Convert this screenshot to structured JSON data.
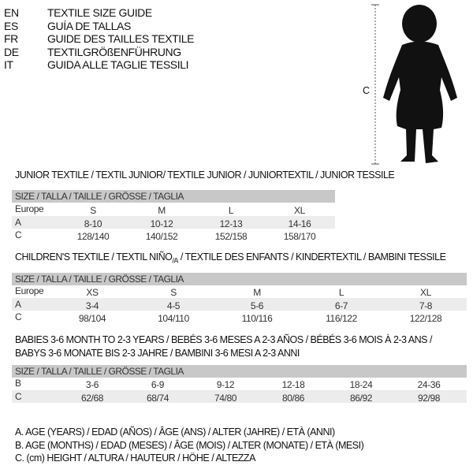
{
  "header": {
    "languages": [
      {
        "code": "EN",
        "title": "TEXTILE SIZE GUIDE"
      },
      {
        "code": "ES",
        "title": "GUÍA DE TALLAS"
      },
      {
        "code": "FR",
        "title": "GUIDE DES TAILLES TEXTILE"
      },
      {
        "code": "DE",
        "title": "TEXTILGRÖßENFÜHRUNG"
      },
      {
        "code": "IT",
        "title": "GUIDA ALLE TAGLIE TESSILI"
      }
    ]
  },
  "figure": {
    "label": "C"
  },
  "size_header": "SIZE / TALLA / TAILLE / GRÖSSE / TAGLIA",
  "junior": {
    "title": "JUNIOR TEXTILE / TEXTIL JUNIOR/ TEXTILE JUNIOR / JUNIORTEXTIL / JUNIOR TESSILE",
    "rows": [
      {
        "label": "Europe",
        "values": [
          "S",
          "M",
          "L",
          "XL"
        ]
      },
      {
        "label": "A",
        "values": [
          "8-10",
          "10-12",
          "12-13",
          "14-16"
        ]
      },
      {
        "label": "C",
        "values": [
          "128/140",
          "140/152",
          "152/158",
          "158/170"
        ]
      }
    ]
  },
  "children": {
    "title": "CHILDREN'S TEXTILE / TEXTIL NIÑO",
    "title_sub": "/A",
    "title_rest": " / TEXTILE DES ENFANTS / KINDERTEXTIL / BAMBINI TESSILE",
    "rows": [
      {
        "label": "Europe",
        "values": [
          "XS",
          "S",
          "M",
          "L",
          "XL"
        ]
      },
      {
        "label": "A",
        "values": [
          "3-4",
          "4-5",
          "5-6",
          "6-7",
          "7-8"
        ]
      },
      {
        "label": "C",
        "values": [
          "98/104",
          "104/110",
          "110/116",
          "116/122",
          "122/128"
        ]
      }
    ]
  },
  "babies": {
    "title_line1": "BABIES 3-6 MONTH TO 2-3 YEARS / BEBÉS 3-6 MESES A 2-3 AÑOS / BÉBÉS 3-6 MOIS À 2-3 ANS /",
    "title_line2": "BABYS 3-6 MONATE BIS 2-3 JAHRE / BAMBINI 3-6 MESI A 2-3 ANNI",
    "rows": [
      {
        "label": "B",
        "values": [
          "3-6",
          "6-9",
          "9-12",
          "12-18",
          "18-24",
          "24-36"
        ]
      },
      {
        "label": "C",
        "values": [
          "62/68",
          "68/74",
          "74/80",
          "80/86",
          "86/92",
          "92/98"
        ]
      }
    ]
  },
  "legend": [
    "A. AGE (YEARS) / EDAD (AÑOS) / ÂGE (ANS) / ALTER (JAHRE) / ETÀ (ANNI)",
    "B. AGE (MONTHS) / EDAD (MESES) / ÂGE (MOIS) / ALTER (MONATE) / ETÀ (MESI)",
    "C. (cm) HEIGHT / ALTURA / HAUTEUR / HÖHE / ALTEZZA"
  ]
}
